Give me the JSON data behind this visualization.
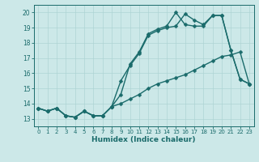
{
  "xlabel": "Humidex (Indice chaleur)",
  "bg_color": "#cce8e8",
  "grid_color": "#aed4d4",
  "line_color": "#1a6b6b",
  "xlim": [
    -0.5,
    23.5
  ],
  "ylim": [
    12.5,
    20.5
  ],
  "xticks": [
    0,
    1,
    2,
    3,
    4,
    5,
    6,
    7,
    8,
    9,
    10,
    11,
    12,
    13,
    14,
    15,
    16,
    17,
    18,
    19,
    20,
    21,
    22,
    23
  ],
  "yticks": [
    13,
    14,
    15,
    16,
    17,
    18,
    19,
    20
  ],
  "line1_x": [
    0,
    1,
    2,
    3,
    4,
    5,
    6,
    7,
    8,
    9,
    10,
    11,
    12,
    13,
    14,
    15,
    16,
    17,
    18,
    19,
    20,
    21,
    22,
    23
  ],
  "line1_y": [
    13.7,
    13.5,
    13.7,
    13.2,
    13.1,
    13.5,
    13.2,
    13.2,
    13.8,
    15.5,
    16.5,
    17.3,
    18.5,
    18.8,
    19.0,
    19.1,
    19.9,
    19.5,
    19.2,
    19.8,
    19.8,
    17.5,
    15.6,
    15.3
  ],
  "line2_x": [
    0,
    1,
    2,
    3,
    4,
    5,
    6,
    7,
    8,
    9,
    10,
    11,
    12,
    13,
    14,
    15,
    16,
    17,
    18,
    19,
    20,
    21,
    22,
    23
  ],
  "line2_y": [
    13.7,
    13.5,
    13.7,
    13.2,
    13.1,
    13.5,
    13.2,
    13.2,
    13.8,
    14.0,
    14.3,
    14.6,
    15.0,
    15.3,
    15.5,
    15.7,
    15.9,
    16.2,
    16.5,
    16.8,
    17.1,
    17.2,
    17.4,
    15.3
  ],
  "line3_x": [
    0,
    1,
    2,
    3,
    4,
    5,
    6,
    7,
    8,
    9,
    10,
    11,
    12,
    13,
    14,
    15,
    16,
    17,
    18,
    19,
    20,
    21,
    22,
    23
  ],
  "line3_y": [
    13.7,
    13.5,
    13.7,
    13.2,
    13.1,
    13.5,
    13.2,
    13.2,
    13.8,
    14.6,
    16.6,
    17.4,
    18.6,
    18.9,
    19.1,
    20.0,
    19.2,
    19.1,
    19.1,
    19.8,
    19.8,
    17.5,
    15.6,
    15.3
  ],
  "marker": "D",
  "markersize": 2.5,
  "linewidth": 1.0
}
